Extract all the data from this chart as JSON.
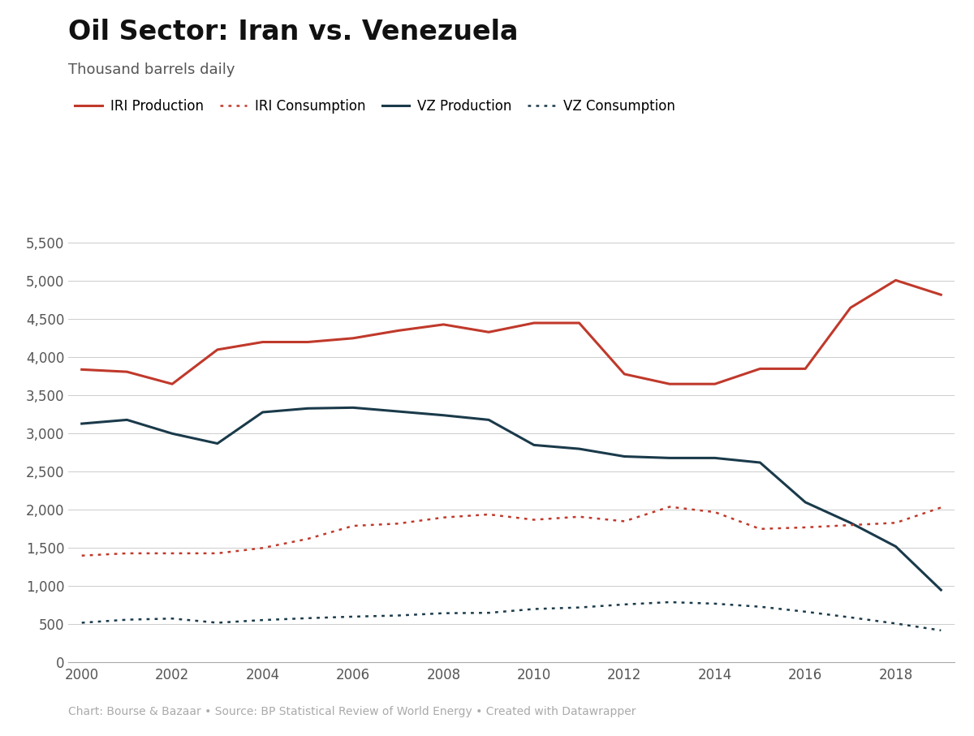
{
  "title": "Oil Sector: Iran vs. Venezuela",
  "subtitle": "Thousand barrels daily",
  "footnote": "Chart: Bourse & Bazaar • Source: BP Statistical Review of World Energy • Created with Datawrapper",
  "years": [
    2000,
    2001,
    2002,
    2003,
    2004,
    2005,
    2006,
    2007,
    2008,
    2009,
    2010,
    2011,
    2012,
    2013,
    2014,
    2015,
    2016,
    2017,
    2018,
    2019
  ],
  "IRI_Production": [
    3840,
    3810,
    3650,
    4100,
    4200,
    4200,
    4250,
    4350,
    4430,
    4330,
    4450,
    4450,
    3780,
    3650,
    3650,
    3850,
    3850,
    4650,
    5010,
    4820
  ],
  "IRI_Consumption": [
    1400,
    1430,
    1430,
    1430,
    1500,
    1620,
    1790,
    1820,
    1900,
    1940,
    1870,
    1910,
    1850,
    2040,
    1970,
    1750,
    1770,
    1800,
    1830,
    2030
  ],
  "VZ_Production": [
    3130,
    3180,
    3000,
    2870,
    3280,
    3330,
    3340,
    3290,
    3240,
    3180,
    2850,
    2800,
    2700,
    2680,
    2680,
    2620,
    2100,
    1830,
    1520,
    950
  ],
  "VZ_Consumption": [
    520,
    560,
    575,
    520,
    555,
    580,
    600,
    615,
    645,
    650,
    700,
    720,
    760,
    790,
    770,
    730,
    665,
    590,
    510,
    420
  ],
  "IRI_prod_color": "#c0392b",
  "IRI_cons_color": "#c0392b",
  "VZ_prod_color": "#1a3a4a",
  "VZ_cons_color": "#1a3a4a",
  "background_color": "#ffffff",
  "grid_color": "#cccccc",
  "axis_color": "#aaaaaa",
  "tick_color": "#555555",
  "title_color": "#111111",
  "subtitle_color": "#555555",
  "footnote_color": "#aaaaaa",
  "ylim": [
    0,
    5500
  ],
  "yticks": [
    0,
    500,
    1000,
    1500,
    2000,
    2500,
    3000,
    3500,
    4000,
    4500,
    5000,
    5500
  ],
  "xlim_min": 2000,
  "xlim_max": 2019,
  "title_fontsize": 24,
  "subtitle_fontsize": 13,
  "tick_fontsize": 12,
  "legend_fontsize": 12,
  "footnote_fontsize": 10,
  "legend_labels": [
    "IRI Production",
    "IRI Consumption",
    "VZ Production",
    "VZ Consumption"
  ]
}
